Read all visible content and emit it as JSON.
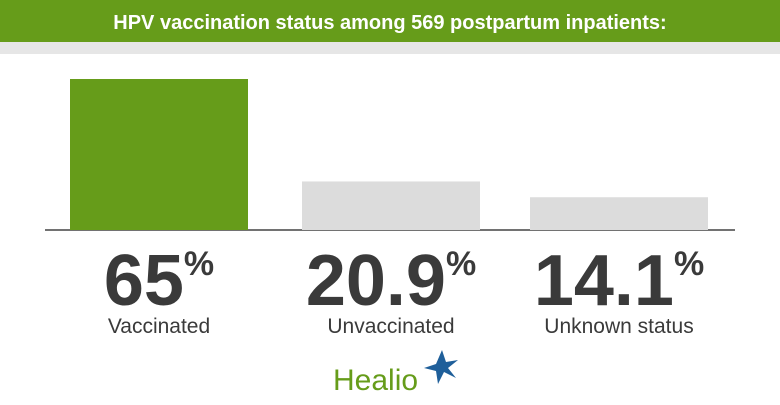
{
  "chart_data": {
    "type": "bar",
    "title": "HPV vaccination status among 569 postpartum inpatients:",
    "categories": [
      "Vaccinated",
      "Unvaccinated",
      "Unknown status"
    ],
    "values": [
      65,
      20.9,
      14.1
    ],
    "value_labels": [
      "65%",
      "20.9%",
      "14.1%"
    ],
    "colors": [
      "#669c1a",
      "#dcdcdc",
      "#dcdcdc"
    ]
  },
  "logo": "Healio"
}
